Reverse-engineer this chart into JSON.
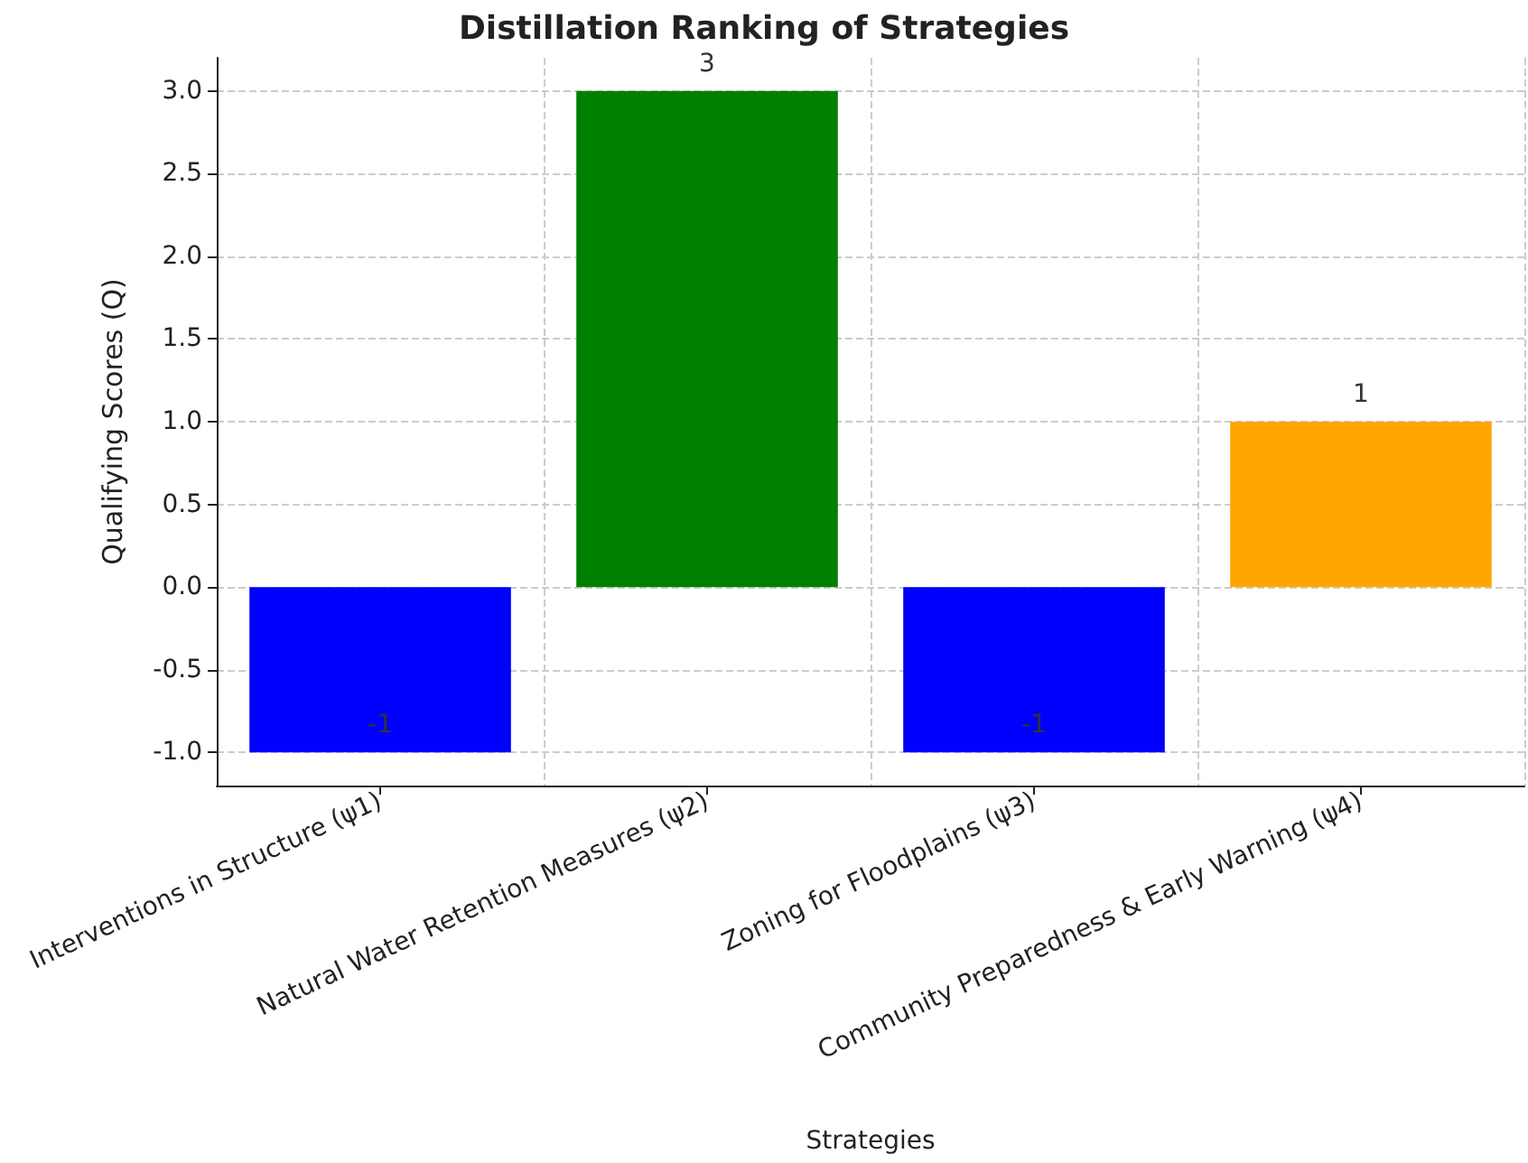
{
  "chart_data": {
    "type": "bar",
    "title": "Distillation Ranking of Strategies",
    "xlabel": "Strategies",
    "ylabel": "Qualifying Scores (Q)",
    "categories": [
      "Interventions in Structure (ψ1)",
      "Natural Water Retention Measures (ψ2)",
      "Zoning for Floodplains (ψ3)",
      "Community Preparedness & Early Warning (ψ4)"
    ],
    "values": [
      -1,
      3,
      -1,
      1
    ],
    "colors": [
      "#0000ff",
      "#008000",
      "#0000ff",
      "#ffa500"
    ],
    "ylim": [
      -1.2,
      3.2
    ],
    "yticks": [
      {
        "value": -1,
        "label": "-1.0"
      },
      {
        "value": -0.5,
        "label": "-0.5"
      },
      {
        "value": 0,
        "label": "0.0"
      },
      {
        "value": 0.5,
        "label": "0.5"
      },
      {
        "value": 1,
        "label": "1.0"
      },
      {
        "value": 1.5,
        "label": "1.5"
      },
      {
        "value": 2,
        "label": "2.0"
      },
      {
        "value": 2.5,
        "label": "2.5"
      },
      {
        "value": 3,
        "label": "3.0"
      }
    ],
    "grid": true,
    "data_labels": true
  }
}
